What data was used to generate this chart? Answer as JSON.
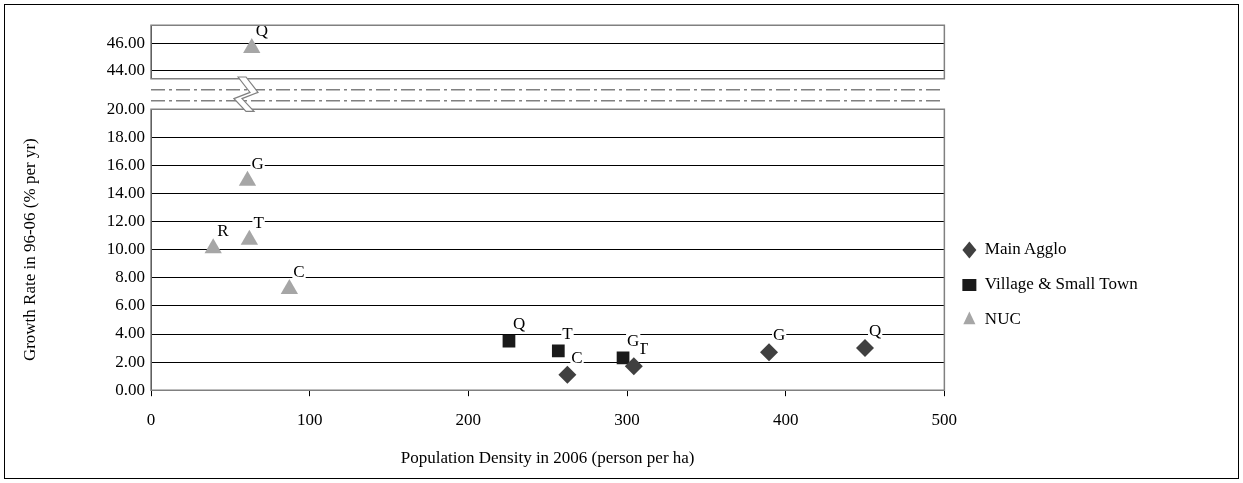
{
  "chart_data": [
    {
      "type": "scatter",
      "series": [
        {
          "color": "#a6a6a6",
          "marker": "triangle",
          "x": [
            63.5
          ],
          "values": [
            45.7
          ]
        }
      ],
      "xlim": [
        0,
        500
      ],
      "ylim": [
        43.4,
        47.4
      ],
      "yticks": [
        {
          "value": 44,
          "label": "44.00"
        },
        {
          "value": 46,
          "label": "46.00"
        }
      ],
      "tick_labels": "y",
      "grid": "y",
      "annotations": [
        {
          "text": "Q",
          "x": 63.5,
          "y": 45.7
        }
      ]
    },
    {
      "type": "scatter",
      "series": [
        {
          "name": "Main Agglo",
          "color": "#404040",
          "marker": "diamond",
          "x": [
            262.4,
            304.3,
            389.5,
            450
          ],
          "values": [
            1.1,
            1.7,
            2.7,
            3.0
          ]
        },
        {
          "name": "Village & Small Town",
          "color": "#1a1a1a",
          "marker": "square",
          "x": [
            225.6,
            256.7,
            297.5
          ],
          "values": [
            3.5,
            2.8,
            2.3
          ]
        },
        {
          "name": "NUC",
          "color": "#a6a6a6",
          "marker": "triangle",
          "x": [
            39.2,
            60.8,
            62,
            87.2
          ],
          "values": [
            10.1,
            14.9,
            10.7,
            7.2
          ]
        }
      ],
      "xlim": [
        0,
        500
      ],
      "xticks": [
        0,
        100,
        200,
        300,
        400,
        500
      ],
      "ylim": [
        0,
        20
      ],
      "yticks": [
        {
          "value": 0,
          "label": "0.00"
        },
        {
          "value": 2,
          "label": "2.00"
        },
        {
          "value": 4,
          "label": "4.00"
        },
        {
          "value": 6,
          "label": "6.00"
        },
        {
          "value": 8,
          "label": "8.00"
        },
        {
          "value": 10,
          "label": "10.00"
        },
        {
          "value": 12,
          "label": "12.00"
        },
        {
          "value": 14,
          "label": "14.00"
        },
        {
          "value": 16,
          "label": "16.00"
        },
        {
          "value": 18,
          "label": "18.00"
        },
        {
          "value": 20,
          "label": "20.00"
        }
      ],
      "xlabel": "Population Density in 2006 (person per ha)",
      "ylabel": "Growth Rate in 96-06 (% per yr)",
      "grid": "y",
      "legend": "right",
      "annotations": [
        {
          "text": "C",
          "x": 262.4,
          "y": 1.1
        },
        {
          "text": "T",
          "x": 304.3,
          "y": 1.7
        },
        {
          "text": "G",
          "x": 389.5,
          "y": 2.7
        },
        {
          "text": "Q",
          "x": 450,
          "y": 3.0
        },
        {
          "text": "Q",
          "x": 225.6,
          "y": 3.5
        },
        {
          "text": "T",
          "x": 256.7,
          "y": 2.8
        },
        {
          "text": "G",
          "x": 297.5,
          "y": 2.3
        },
        {
          "text": "R",
          "x": 39.2,
          "y": 10.1
        },
        {
          "text": "G",
          "x": 60.8,
          "y": 14.9
        },
        {
          "text": "T",
          "x": 62,
          "y": 10.7
        },
        {
          "text": "C",
          "x": 87.2,
          "y": 7.2
        }
      ]
    }
  ]
}
